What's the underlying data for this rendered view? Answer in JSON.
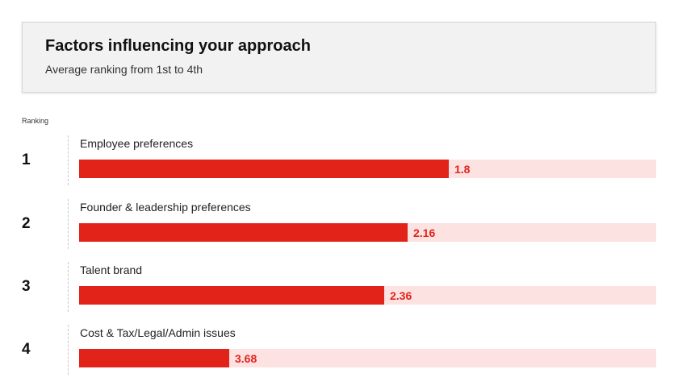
{
  "chart_data": {
    "type": "bar",
    "title": "Factors influencing your approach",
    "subtitle": "Average ranking from 1st to 4th",
    "ylabel": "Ranking",
    "ranks": [
      "1",
      "2",
      "3",
      "4"
    ],
    "categories": [
      "Employee preferences",
      "Founder & leadership preferences",
      "Talent brand",
      "Cost & Tax/Legal/Admin issues"
    ],
    "values": [
      1.8,
      2.16,
      2.36,
      3.68
    ],
    "value_labels": [
      "1.8",
      "2.16",
      "2.36",
      "3.68"
    ],
    "bar_scale": [
      0.64,
      0.569,
      0.528,
      0.26
    ],
    "orientation": "horizontal",
    "grid": false
  },
  "colors": {
    "bar": "#e2231a",
    "track": "#fde2e2",
    "value_text": "#e2231a",
    "header_bg": "#f2f2f2"
  }
}
